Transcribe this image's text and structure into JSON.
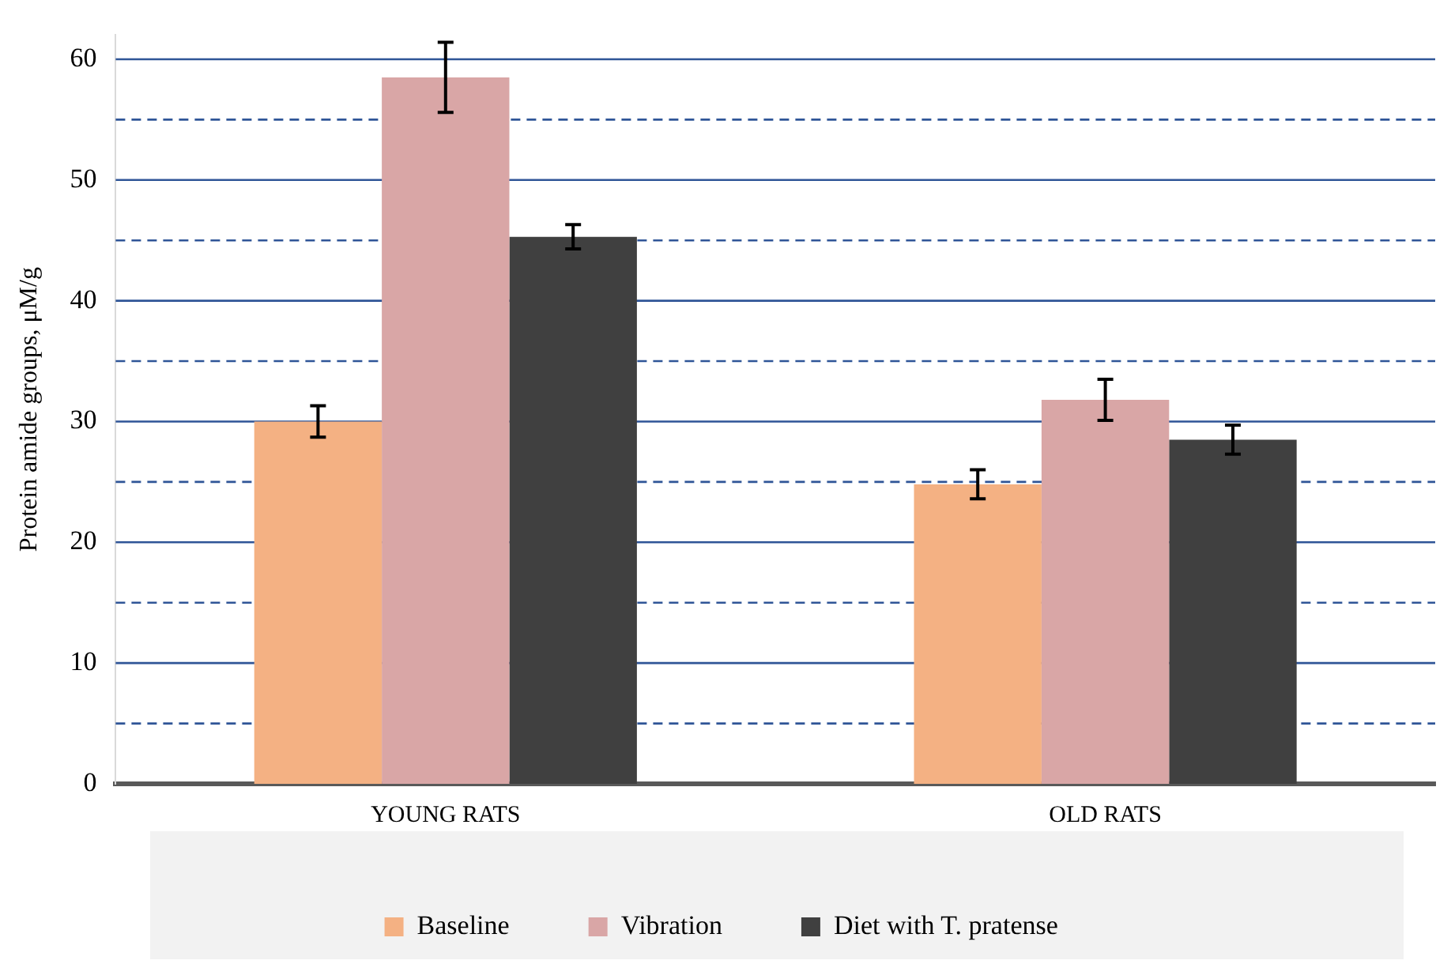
{
  "chart_data": {
    "type": "bar",
    "ylabel": "Protein amide groups, μM/g",
    "categories": [
      "YOUNG RATS",
      "OLD RATS"
    ],
    "series": [
      {
        "name": "Baseline",
        "color": "#f4b183",
        "values": [
          30,
          24.8
        ],
        "errors": [
          1.3,
          1.2
        ]
      },
      {
        "name": "Vibration",
        "color": "#d9a6a6",
        "values": [
          58.5,
          31.8
        ],
        "errors": [
          2.9,
          1.7
        ]
      },
      {
        "name": "Diet with T. pratense",
        "color": "#404040",
        "values": [
          45.3,
          28.5
        ],
        "errors": [
          1,
          1.2
        ]
      }
    ],
    "ylim": [
      0,
      62
    ],
    "yticks": [
      0,
      {
        "value": 5,
        "label": null
      },
      10,
      {
        "value": 15,
        "label": null
      },
      20,
      {
        "value": 25,
        "label": null
      },
      30,
      {
        "value": 35,
        "label": null
      },
      40,
      {
        "value": 45,
        "label": null
      },
      50,
      {
        "value": 55,
        "label": null
      },
      60
    ],
    "grid": "y",
    "legend": "bottom"
  }
}
